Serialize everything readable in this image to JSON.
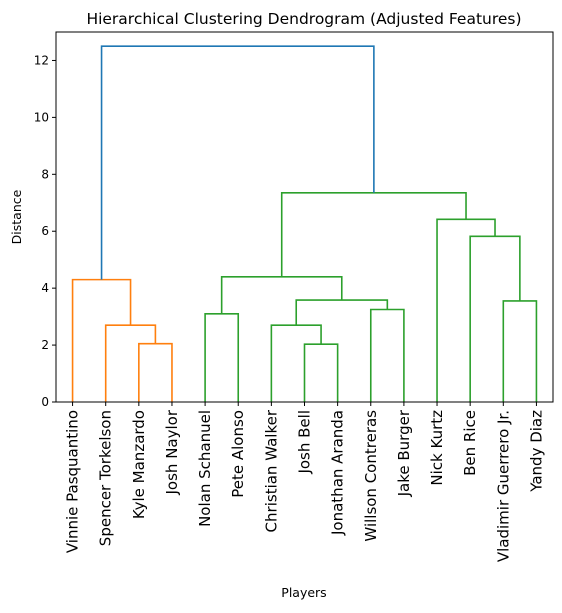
{
  "chart_data": {
    "type": "dendrogram",
    "title": "Hierarchical Clustering Dendrogram (Adjusted Features)",
    "xlabel": "Players",
    "ylabel": "Distance",
    "ylim": [
      0,
      13
    ],
    "yticks": [
      0,
      2,
      4,
      6,
      8,
      10,
      12
    ],
    "grid": false,
    "leaves": [
      "Vinnie Pasquantino",
      "Spencer Torkelson",
      "Kyle Manzardo",
      "Josh Naylor",
      "Nolan Schanuel",
      "Pete Alonso",
      "Christian Walker",
      "Josh Bell",
      "Jonathan Aranda",
      "Willson Contreras",
      "Jake Burger",
      "Nick Kurtz",
      "Ben Rice",
      "Vladimir Guerrero Jr.",
      "Yandy Diaz"
    ],
    "colors": {
      "cluster_1": "#ff7f0e",
      "cluster_2": "#2ca02c",
      "root": "#1f77b4"
    },
    "links": [
      {
        "left": "Kyle Manzardo",
        "right": "Josh Naylor",
        "distance": 2.05,
        "color": "cluster_1"
      },
      {
        "left": "Spencer Torkelson",
        "right": "Kyle Manzardo + Josh Naylor",
        "distance": 2.7,
        "color": "cluster_1"
      },
      {
        "left": "Vinnie Pasquantino",
        "right": "Spencer Torkelson + Kyle Manzardo + Josh Naylor",
        "distance": 4.3,
        "color": "cluster_1"
      },
      {
        "left": "Nolan Schanuel",
        "right": "Pete Alonso",
        "distance": 3.1,
        "color": "cluster_2"
      },
      {
        "left": "Josh Bell",
        "right": "Jonathan Aranda",
        "distance": 2.03,
        "color": "cluster_2"
      },
      {
        "left": "Christian Walker",
        "right": "Josh Bell + Jonathan Aranda",
        "distance": 2.7,
        "color": "cluster_2"
      },
      {
        "left": "Willson Contreras",
        "right": "Jake Burger",
        "distance": 3.25,
        "color": "cluster_2"
      },
      {
        "left": "Christian Walker + Josh Bell + Jonathan Aranda",
        "right": "Willson Contreras + Jake Burger",
        "distance": 3.58,
        "color": "cluster_2"
      },
      {
        "left": "Nolan Schanuel + Pete Alonso",
        "right": "Christian Walker ... Jake Burger",
        "distance": 4.4,
        "color": "cluster_2"
      },
      {
        "left": "Vladimir Guerrero Jr.",
        "right": "Yandy Diaz",
        "distance": 3.55,
        "color": "cluster_2"
      },
      {
        "left": "Ben Rice",
        "right": "Vladimir Guerrero Jr. + Yandy Diaz",
        "distance": 5.82,
        "color": "cluster_2"
      },
      {
        "left": "Nick Kurtz",
        "right": "Ben Rice + Vladimir Guerrero Jr. + Yandy Diaz",
        "distance": 6.42,
        "color": "cluster_2"
      },
      {
        "left": "Nolan Schanuel ... Jake Burger",
        "right": "Nick Kurtz ... Yandy Diaz",
        "distance": 7.35,
        "color": "cluster_2"
      },
      {
        "left": "Vinnie Pasquantino ... Josh Naylor",
        "right": "Nolan Schanuel ... Yandy Diaz",
        "distance": 12.5,
        "color": "root"
      }
    ]
  }
}
